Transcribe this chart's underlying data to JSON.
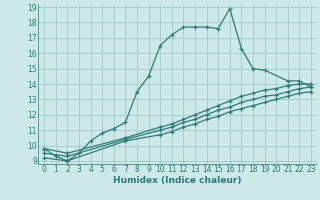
{
  "xlabel": "Humidex (Indice chaleur)",
  "bg_color": "#cce8e8",
  "grid_color": "#aacccc",
  "line_color": "#2d7a7a",
  "xlim": [
    -0.5,
    23.5
  ],
  "ylim": [
    8.8,
    19.2
  ],
  "xticks": [
    0,
    1,
    2,
    3,
    4,
    5,
    6,
    7,
    8,
    9,
    10,
    11,
    12,
    13,
    14,
    15,
    16,
    17,
    18,
    19,
    20,
    21,
    22,
    23
  ],
  "yticks": [
    9,
    10,
    11,
    12,
    13,
    14,
    15,
    16,
    17,
    18,
    19
  ],
  "lines": [
    {
      "x": [
        0,
        1,
        2,
        3,
        4,
        5,
        6,
        7,
        8,
        9,
        10,
        11,
        12,
        13,
        14,
        15,
        16,
        17,
        18,
        19,
        21,
        22,
        23
      ],
      "y": [
        9.8,
        9.3,
        9.0,
        9.5,
        10.3,
        10.8,
        11.1,
        11.5,
        13.5,
        14.5,
        16.5,
        17.2,
        17.7,
        17.7,
        17.7,
        17.6,
        18.9,
        16.3,
        15.0,
        14.9,
        14.2,
        14.2,
        13.8
      ]
    },
    {
      "x": [
        0,
        2,
        7,
        10,
        11,
        12,
        13,
        14,
        15,
        16,
        17,
        18,
        19,
        20,
        21,
        22,
        23
      ],
      "y": [
        9.8,
        9.5,
        10.5,
        11.2,
        11.4,
        11.7,
        12.0,
        12.3,
        12.6,
        12.9,
        13.2,
        13.4,
        13.6,
        13.7,
        13.9,
        14.0,
        14.0
      ]
    },
    {
      "x": [
        0,
        2,
        7,
        10,
        11,
        12,
        13,
        14,
        15,
        16,
        17,
        18,
        19,
        20,
        21,
        22,
        23
      ],
      "y": [
        9.5,
        9.3,
        10.4,
        11.0,
        11.2,
        11.5,
        11.7,
        12.0,
        12.3,
        12.5,
        12.8,
        13.0,
        13.2,
        13.3,
        13.5,
        13.7,
        13.8
      ]
    },
    {
      "x": [
        0,
        2,
        7,
        10,
        11,
        12,
        13,
        14,
        15,
        16,
        17,
        18,
        19,
        20,
        21,
        22,
        23
      ],
      "y": [
        9.2,
        9.0,
        10.3,
        10.7,
        10.9,
        11.2,
        11.4,
        11.7,
        11.9,
        12.2,
        12.4,
        12.6,
        12.8,
        13.0,
        13.2,
        13.4,
        13.5
      ]
    }
  ]
}
